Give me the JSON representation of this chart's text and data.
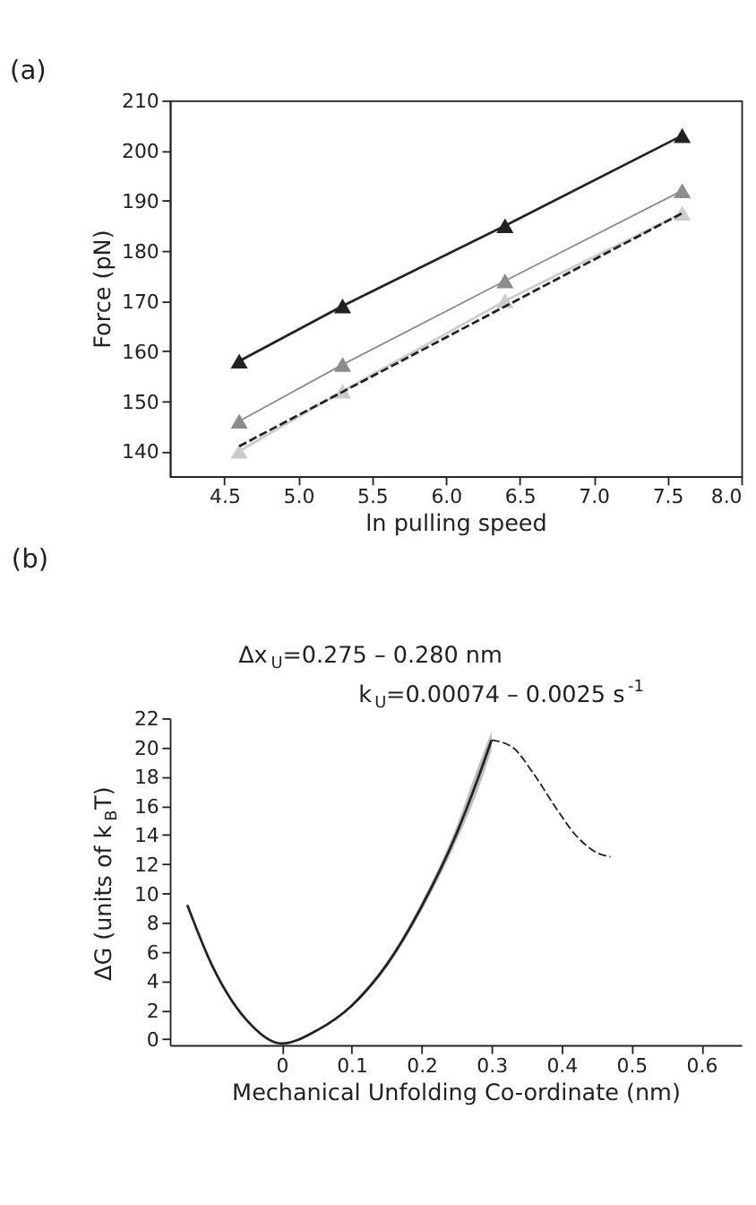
{
  "chart_data": [
    {
      "type": "line",
      "title": "(a)",
      "xlabel": "ln pulling speed",
      "ylabel": "Force (pN)",
      "xlim": [
        4.13,
        8.0
      ],
      "ylim": [
        135,
        210
      ],
      "xticks": [
        {
          "value": 4.5,
          "label": "4.5"
        },
        {
          "value": 5.0,
          "label": "5.0"
        },
        {
          "value": 5.5,
          "label": "5.5"
        },
        {
          "value": 6.0,
          "label": "6.0"
        },
        {
          "value": 6.5,
          "label": "6.5"
        },
        {
          "value": 7.0,
          "label": "7.0"
        },
        {
          "value": 7.5,
          "label": "7.5"
        },
        {
          "value": 8.0,
          "label": "8.0"
        }
      ],
      "yticks": [
        140,
        150,
        160,
        170,
        180,
        190,
        200,
        210
      ],
      "grid": false,
      "marker": "triangle",
      "line_style": "solid",
      "series": [
        {
          "color": "#222222",
          "x": [
            4.6,
            5.3,
            6.4,
            7.6
          ],
          "values": [
            158,
            169,
            185,
            203
          ]
        },
        {
          "color": "#8c8c8c",
          "x": [
            4.6,
            5.3,
            6.4,
            7.6
          ],
          "values": [
            146,
            157.3,
            174,
            192
          ]
        },
        {
          "color": "#cccccc",
          "x": [
            4.6,
            5.3,
            6.4,
            7.6
          ],
          "values": [
            140,
            152,
            170,
            187.5
          ]
        },
        {
          "type": "line",
          "color": "#222222",
          "marker": "none",
          "line_style": "dashed",
          "x": [
            4.6,
            7.6
          ],
          "values": [
            141,
            187.5
          ]
        }
      ]
    },
    {
      "type": "line",
      "title": "(b)",
      "xlabel": "Mechanical Unfolding Co-ordinate (nm)",
      "ylabel": "ΔG (units of k$_{B}$T)",
      "xlim": [
        -0.16,
        0.657
      ],
      "ylim": [
        -0.4,
        22
      ],
      "xticks": [
        0,
        0.1,
        0.2,
        0.3,
        0.4,
        0.5,
        0.6
      ],
      "yticks": [
        0,
        2,
        4,
        6,
        8,
        10,
        12,
        14,
        16,
        18,
        20,
        22
      ],
      "grid": false,
      "marker": "none",
      "line_style": "solid",
      "annotations": [
        "Δx$_{U}$=0.275 – 0.280 nm",
        "k$_{U}$=0.00074 – 0.0025 s$^{-1}$"
      ],
      "series": [
        {
          "color": "#222222",
          "x": [
            -0.135,
            -0.1,
            -0.05,
            0,
            0.05,
            0.1,
            0.15,
            0.2,
            0.25,
            0.28,
            0.3
          ],
          "values": [
            9.2,
            5.1,
            1.3,
            -0.3,
            0.6,
            2.3,
            5.1,
            9.1,
            14.1,
            17.8,
            20.5
          ],
          "lower": [
            null,
            null,
            null,
            null,
            null,
            2.2,
            4.9,
            8.8,
            13.6,
            17,
            19.8
          ],
          "upper": [
            null,
            null,
            null,
            null,
            null,
            2.4,
            5.3,
            9.4,
            14.6,
            18.6,
            21.1
          ]
        },
        {
          "color": "#222222",
          "line_style": "dashed",
          "x": [
            0.3,
            0.33,
            0.36,
            0.39,
            0.42,
            0.45,
            0.47
          ],
          "values": [
            20.5,
            20,
            18.2,
            16,
            14,
            12.8,
            12.5
          ]
        }
      ]
    }
  ]
}
